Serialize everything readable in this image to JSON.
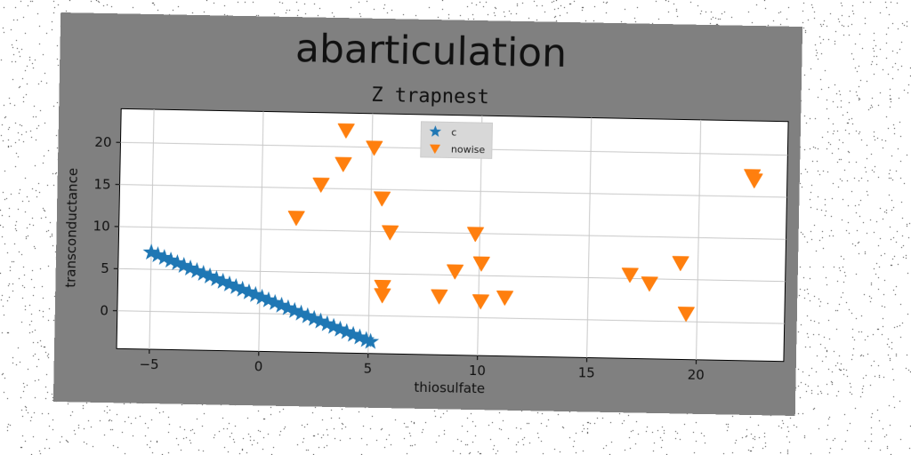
{
  "figure": {
    "suptitle": "abarticulation"
  },
  "chart_data": {
    "type": "scatter",
    "title": "Z trapnest",
    "xlabel": "thiosulfate",
    "ylabel": "transconductance",
    "xlim": [
      -6.5,
      24
    ],
    "ylim": [
      -4.5,
      24
    ],
    "xticks": [
      -5,
      0,
      5,
      10,
      15,
      20
    ],
    "yticks": [
      0,
      5,
      10,
      15,
      20
    ],
    "grid": true,
    "legend_position": "top-center",
    "series": [
      {
        "name": "c",
        "marker": "star",
        "color": "#1f77b4",
        "x": [
          -5.0,
          -4.7,
          -4.4,
          -4.1,
          -3.8,
          -3.5,
          -3.2,
          -2.9,
          -2.6,
          -2.3,
          -2.0,
          -1.7,
          -1.4,
          -1.1,
          -0.8,
          -0.5,
          -0.2,
          0.1,
          0.4,
          0.7,
          1.0,
          1.3,
          1.6,
          1.9,
          2.2,
          2.5,
          2.8,
          3.1,
          3.4,
          3.7,
          4.0,
          4.3,
          4.6,
          4.9,
          5.1
        ],
        "y": [
          7.0,
          6.7,
          6.4,
          6.1,
          5.8,
          5.5,
          5.2,
          4.9,
          4.6,
          4.3,
          4.0,
          3.7,
          3.4,
          3.1,
          2.8,
          2.5,
          2.2,
          1.9,
          1.6,
          1.3,
          1.0,
          0.7,
          0.4,
          0.1,
          -0.2,
          -0.5,
          -0.8,
          -1.1,
          -1.4,
          -1.7,
          -2.0,
          -2.3,
          -2.6,
          -2.9,
          -3.1
        ]
      },
      {
        "name": "nowise",
        "marker": "triangle-down",
        "color": "#ff7f0e",
        "x": [
          1.6,
          2.7,
          3.7,
          3.8,
          5.1,
          5.5,
          5.6,
          5.6,
          5.9,
          8.2,
          8.9,
          9.8,
          10.1,
          10.1,
          11.2,
          16.9,
          17.8,
          19.2,
          19.5,
          22.4,
          22.5
        ],
        "y": [
          11.5,
          15.5,
          18.0,
          22.0,
          20.0,
          14.0,
          3.5,
          2.5,
          10.0,
          2.5,
          5.5,
          10.0,
          6.5,
          2.0,
          2.5,
          5.5,
          4.5,
          7.0,
          1.0,
          17.5,
          17.0
        ]
      }
    ]
  }
}
